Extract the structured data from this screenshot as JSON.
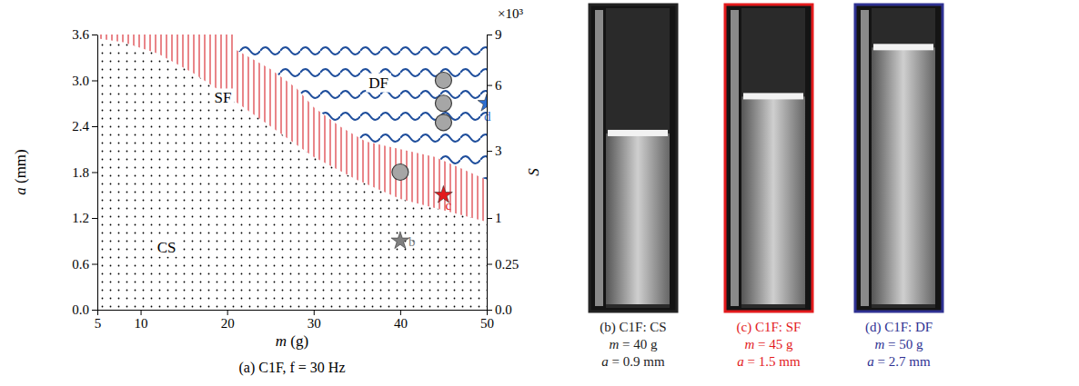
{
  "chart_data": {
    "type": "scatter",
    "title": "(a) C1F, f = 30 Hz",
    "xlabel": "m (g)",
    "ylabel": "a (mm)",
    "y2label": "S",
    "y2_multiplier": "×10³",
    "xlim": [
      5,
      50
    ],
    "xticks": [
      5,
      10,
      20,
      30,
      40,
      50
    ],
    "ylim": [
      0,
      3.6
    ],
    "yticks": [
      {
        "value": 0,
        "label": "0.0"
      },
      0.6,
      1.2,
      1.8,
      2.4,
      {
        "value": 3,
        "label": "3.0"
      },
      3.6
    ],
    "y2lim": [
      0,
      9
    ],
    "y2ticks": [
      {
        "value": 0,
        "label": "0.0"
      },
      0.25,
      1,
      3,
      6,
      9
    ],
    "regions": [
      {
        "name": "CS",
        "color": "#000000",
        "line_style": "dotted",
        "x": [
          5,
          5,
          8,
          12,
          16,
          20,
          25,
          30,
          35,
          40,
          45,
          50,
          50
        ],
        "values": [
          0,
          3.55,
          3.5,
          3.35,
          3.1,
          2.8,
          2.4,
          2.0,
          1.7,
          1.45,
          1.3,
          1.15,
          0
        ]
      },
      {
        "name": "SF",
        "color": "#d62027",
        "line_style": "vertical",
        "x": [
          5,
          21,
          21,
          25,
          28,
          30,
          33,
          36,
          40,
          44,
          47,
          50,
          50,
          45,
          40,
          35,
          30,
          25,
          20,
          16,
          12,
          8,
          5
        ],
        "values": [
          3.6,
          3.6,
          3.4,
          3.15,
          2.9,
          2.65,
          2.4,
          2.2,
          2.1,
          2.0,
          1.85,
          1.7,
          1.15,
          1.3,
          1.45,
          1.7,
          2.0,
          2.4,
          2.8,
          3.1,
          3.35,
          3.5,
          3.55
        ]
      },
      {
        "name": "DF",
        "color": "#1f4e9c",
        "line_style": "wavy",
        "x": [
          21,
          50,
          50,
          47,
          44,
          40,
          36,
          33,
          30,
          28,
          25,
          21
        ],
        "values": [
          3.6,
          3.6,
          1.7,
          1.85,
          2.0,
          2.1,
          2.2,
          2.4,
          2.65,
          2.9,
          3.15,
          3.4
        ]
      }
    ],
    "series": [
      {
        "type": "scatter",
        "marker": "circle",
        "color": "#a6a6a6",
        "x": [
          45,
          45,
          45,
          40
        ],
        "values": [
          3.0,
          2.7,
          2.45,
          1.8
        ]
      },
      {
        "type": "scatter",
        "marker": "star",
        "colors": [
          "#7f7f7f",
          "#e31a1c",
          "#2e6fd0"
        ],
        "x": [
          40,
          45,
          50
        ],
        "values": [
          0.9,
          1.5,
          2.7
        ],
        "point_labels": [
          "b",
          "c",
          "d"
        ]
      }
    ]
  },
  "photos": [
    {
      "caption": [
        "(b) C1F: CS",
        "m = 40 g",
        "a = 0.9 mm"
      ],
      "color": "#222222"
    },
    {
      "caption": [
        "(c) C1F: SF",
        "m = 45 g",
        "a = 1.5 mm"
      ],
      "color": "#e31a1c"
    },
    {
      "caption": [
        "(d) C1F: DF",
        "m = 50 g",
        "a = 2.7 mm"
      ],
      "color": "#2e3192"
    }
  ]
}
